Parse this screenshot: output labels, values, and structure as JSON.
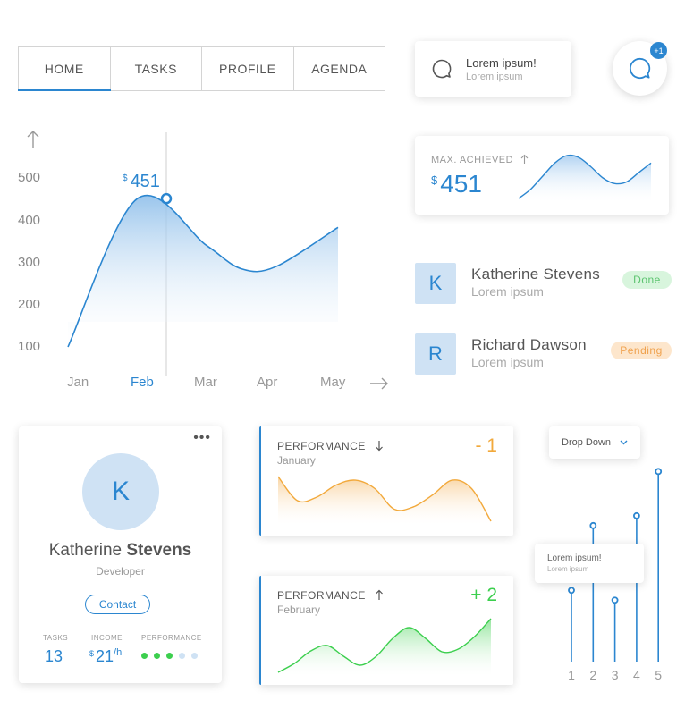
{
  "tabs": [
    {
      "label": "HOME",
      "active": true
    },
    {
      "label": "TASKS",
      "active": false
    },
    {
      "label": "PROFILE",
      "active": false
    },
    {
      "label": "AGENDA",
      "active": false
    }
  ],
  "notification": {
    "title": "Lorem ipsum!",
    "subtitle": "Lorem ipsum",
    "icon": "chat-bubble-icon"
  },
  "fab": {
    "icon": "chat-bubble-icon",
    "badge": "+1"
  },
  "accent_color": "#2b86d0",
  "chart_data": [
    {
      "type": "area",
      "categories": [
        "Jan",
        "Feb",
        "Mar",
        "Apr",
        "May"
      ],
      "y_ticks": [
        "500",
        "400",
        "300",
        "200",
        "100"
      ],
      "ylim": [
        100,
        500
      ],
      "x": [
        0.0,
        1.0,
        2.0,
        2.5,
        3.0,
        4.0
      ],
      "values": [
        100,
        451,
        340,
        285,
        290,
        383
      ],
      "highlight": {
        "category": "Feb",
        "currency": "$",
        "value": "451"
      },
      "grid": false
    },
    {
      "type": "area",
      "label": "MAX. ACHIEVED",
      "currency": "$",
      "value": "451",
      "trend": "up",
      "values": [
        0,
        5,
        12,
        19,
        23,
        22,
        17,
        11,
        8,
        9,
        14,
        19
      ]
    },
    {
      "type": "area",
      "label": "PERFORMANCE",
      "subtitle": "January",
      "change": "- 1",
      "trend": "down",
      "color": "#f2a93b",
      "values": [
        42,
        22,
        25,
        35,
        39,
        32,
        15,
        17,
        27,
        39,
        32,
        5
      ]
    },
    {
      "type": "area",
      "label": "PERFORMANCE",
      "subtitle": "February",
      "change": "+ 2",
      "trend": "up",
      "color": "#3ccf4e",
      "values": [
        2,
        12,
        26,
        32,
        20,
        10,
        20,
        40,
        52,
        40,
        25,
        28,
        42,
        62
      ]
    },
    {
      "type": "stem",
      "categories": [
        "1",
        "2",
        "3",
        "4",
        "5"
      ],
      "values": [
        87,
        166,
        75,
        178,
        232
      ],
      "ylim": [
        0,
        240
      ]
    }
  ],
  "people": [
    {
      "initial": "K",
      "name": "Katherine Stevens",
      "subtitle": "Lorem ipsum",
      "status": "Done"
    },
    {
      "initial": "R",
      "name": "Richard Dawson",
      "subtitle": "Lorem ipsum",
      "status": "Pending"
    }
  ],
  "profile": {
    "menu": "•••",
    "initial": "K",
    "first_name": "Katherine",
    "last_name": "Stevens",
    "role": "Developer",
    "contact_label": "Contact",
    "tasks_label": "TASKS",
    "tasks_value": "13",
    "income_label": "INCOME",
    "income_currency": "$",
    "income_value": "21",
    "income_unit": "/h",
    "performance_label": "PERFORMANCE",
    "performance_level": 3,
    "performance_max": 5
  },
  "dropdown": {
    "label": "Drop Down"
  },
  "tooltip": {
    "title": "Lorem ipsum!",
    "subtitle": "Lorem ipsum"
  }
}
